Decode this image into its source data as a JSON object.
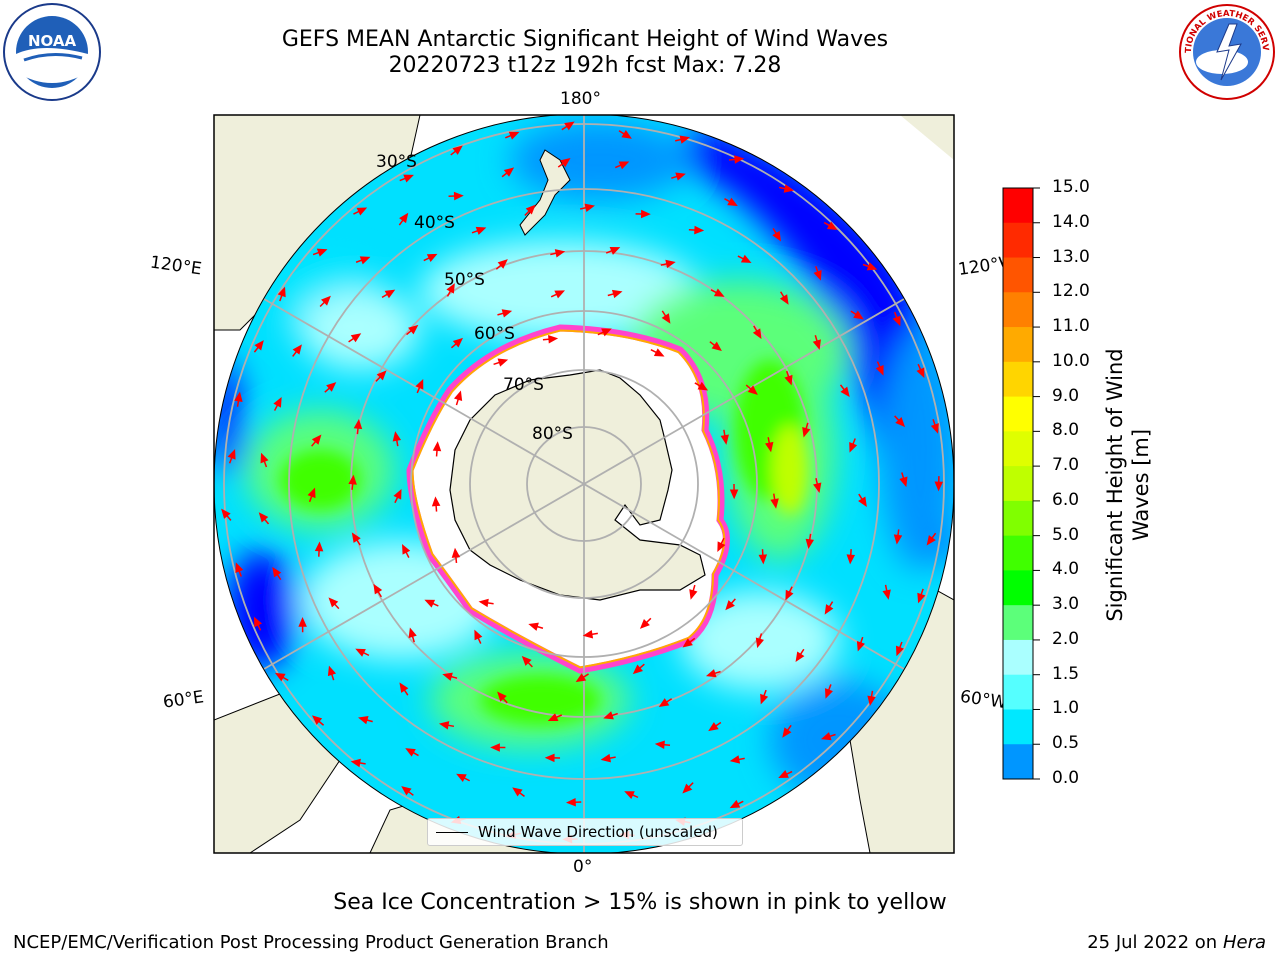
{
  "title": {
    "line1": "GEFS MEAN Antarctic Significant Height of Wind Waves",
    "line2": "20220723 t12z 192h fcst   Max: 7.28"
  },
  "logos": {
    "left": {
      "name": "NOAA",
      "text": "NOAA"
    },
    "right": {
      "name": "National Weather Service",
      "text": "NATIONAL WEATHER SERVICE"
    }
  },
  "map": {
    "projection": "south-polar-stereographic",
    "meridian_labels": {
      "top": "180°",
      "bottom": "0°",
      "upper_left": "120°E",
      "upper_right": "120°W",
      "lower_left": "60°E",
      "lower_right": "60°W"
    },
    "parallel_labels": [
      "30°S",
      "40°S",
      "50°S",
      "60°S",
      "70°S",
      "80°S"
    ],
    "colors": {
      "land": "#efefdb",
      "coast": "#000000",
      "grid": "#b0b0b0",
      "arrow": "#ff0000",
      "ice_edge": "#ff44cc"
    }
  },
  "legend": {
    "label": "Wind Wave Direction (unscaled)"
  },
  "colorbar": {
    "label_line1": "Significant Height of Wind",
    "label_line2": "Waves [m]",
    "ticks": [
      "15.0",
      "14.0",
      "13.0",
      "12.0",
      "11.0",
      "10.0",
      "9.0",
      "8.0",
      "7.0",
      "6.0",
      "5.0",
      "4.0",
      "3.0",
      "2.0",
      "1.5",
      "1.0",
      "0.5",
      "0.0"
    ],
    "colors": [
      "#ff0000",
      "#ff2a00",
      "#ff5500",
      "#ff8000",
      "#ffaa00",
      "#ffd500",
      "#ffff00",
      "#dfff00",
      "#bfff00",
      "#80ff00",
      "#40ff00",
      "#00ff00",
      "#5cff7a",
      "#aaffff",
      "#55ffff",
      "#00e8ff",
      "#0096ff",
      "#0000ff"
    ]
  },
  "caption": "Sea Ice Concentration > 15% is shown in pink to yellow",
  "footer": {
    "left": "NCEP/EMC/Verification Post Processing Product Generation Branch",
    "right_date": "25 Jul 2022 on",
    "right_system": "Hera"
  }
}
